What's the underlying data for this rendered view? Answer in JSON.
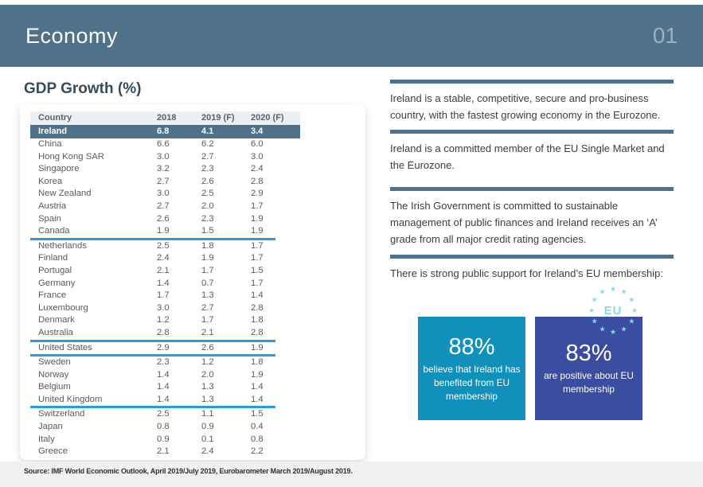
{
  "header": {
    "title": "Economy",
    "page_number": "01"
  },
  "gdp_table": {
    "title": "GDP Growth (%)",
    "columns": [
      "Country",
      "2018",
      "2019 (F)",
      "2020 (F)"
    ],
    "highlight_row": {
      "country": "Ireland",
      "values": [
        "6.8",
        "4.1",
        "3.4"
      ]
    },
    "rows": [
      {
        "country": "China",
        "values": [
          "6.6",
          "6.2",
          "6.0"
        ],
        "divider_below": false
      },
      {
        "country": "Hong Kong SAR",
        "values": [
          "3.0",
          "2.7",
          "3.0"
        ],
        "divider_below": false
      },
      {
        "country": "Singapore",
        "values": [
          "3.2",
          "2.3",
          "2.4"
        ],
        "divider_below": false
      },
      {
        "country": "Korea",
        "values": [
          "2.7",
          "2.6",
          "2.8"
        ],
        "divider_below": false
      },
      {
        "country": "New Zealand",
        "values": [
          "3.0",
          "2.5",
          "2.9"
        ],
        "divider_below": false
      },
      {
        "country": "Austria",
        "values": [
          "2.7",
          "2.0",
          "1.7"
        ],
        "divider_below": false
      },
      {
        "country": "Spain",
        "values": [
          "2.6",
          "2.3",
          "1.9"
        ],
        "divider_below": false
      },
      {
        "country": "Canada",
        "values": [
          "1.9",
          "1.5",
          "1.9"
        ],
        "divider_below": true
      },
      {
        "country": "Netherlands",
        "values": [
          "2.5",
          "1.8",
          "1.7"
        ],
        "divider_below": false
      },
      {
        "country": "Finland",
        "values": [
          "2.4",
          "1.9",
          "1.7"
        ],
        "divider_below": false
      },
      {
        "country": "Portugal",
        "values": [
          "2.1",
          "1.7",
          "1.5"
        ],
        "divider_below": false
      },
      {
        "country": "Germany",
        "values": [
          "1.4",
          "0.7",
          "1.7"
        ],
        "divider_below": false
      },
      {
        "country": "France",
        "values": [
          "1.7",
          "1.3",
          "1.4"
        ],
        "divider_below": false
      },
      {
        "country": "Luxembourg",
        "values": [
          "3.0",
          "2.7",
          "2.8"
        ],
        "divider_below": false
      },
      {
        "country": "Denmark",
        "values": [
          "1.2",
          "1.7",
          "1.8"
        ],
        "divider_below": false
      },
      {
        "country": "Australia",
        "values": [
          "2.8",
          "2.1",
          "2.8"
        ],
        "divider_below": true
      },
      {
        "country": "United States",
        "values": [
          "2.9",
          "2.6",
          "1.9"
        ],
        "divider_below": true
      },
      {
        "country": "Sweden",
        "values": [
          "2.3",
          "1.2",
          "1.8"
        ],
        "divider_below": false
      },
      {
        "country": "Norway",
        "values": [
          "1.4",
          "2.0",
          "1.9"
        ],
        "divider_below": false
      },
      {
        "country": "Belgium",
        "values": [
          "1.4",
          "1.3",
          "1.4"
        ],
        "divider_below": false
      },
      {
        "country": "United Kingdom",
        "values": [
          "1.4",
          "1.3",
          "1.4"
        ],
        "divider_below": true
      },
      {
        "country": "Switzerland",
        "values": [
          "2.5",
          "1.1",
          "1.5"
        ],
        "divider_below": false
      },
      {
        "country": "Japan",
        "values": [
          "0.8",
          "0.9",
          "0.4"
        ],
        "divider_below": false
      },
      {
        "country": "Italy",
        "values": [
          "0.9",
          "0.1",
          "0.8"
        ],
        "divider_below": false
      },
      {
        "country": "Greece",
        "values": [
          "2.1",
          "2.4",
          "2.2"
        ],
        "divider_below": false
      }
    ]
  },
  "info_blocks": [
    {
      "text": "Ireland is a stable, competitive, secure and pro-business country, with the fastest growing economy in the Eurozone."
    },
    {
      "text": "Ireland is a committed member of the EU Single Market and the Eurozone."
    },
    {
      "text": "The Irish Government is committed to sustainable management of public finances and Ireland receives an ‘A’ grade from all major credit rating agencies."
    },
    {
      "text": "There is strong public support for Ireland’s EU membership:"
    }
  ],
  "eu_badge": {
    "label": "EU"
  },
  "stat_boxes": [
    {
      "value": "88%",
      "caption": "believe that Ireland has benefited from EU membership",
      "color": "#1090ba"
    },
    {
      "value": "83%",
      "caption": "are positive about EU membership",
      "color": "#3b4da0"
    }
  ],
  "footer": {
    "source": "Source: IMF World Economic Outlook, April 2019/July 2019, Eurobarometer March 2019/August 2019."
  },
  "colors": {
    "header_bar": "#4f7189",
    "highlight_row": "#4f7189",
    "table_head_bg": "#ecf0f2",
    "group_divider": "#2e9ad6",
    "box_teal": "#1090ba",
    "box_blue": "#3b4da0",
    "star_cyan": "#86d9ec",
    "footer_bg": "#f1f1f1",
    "page_number_text": "#9db1c0"
  }
}
